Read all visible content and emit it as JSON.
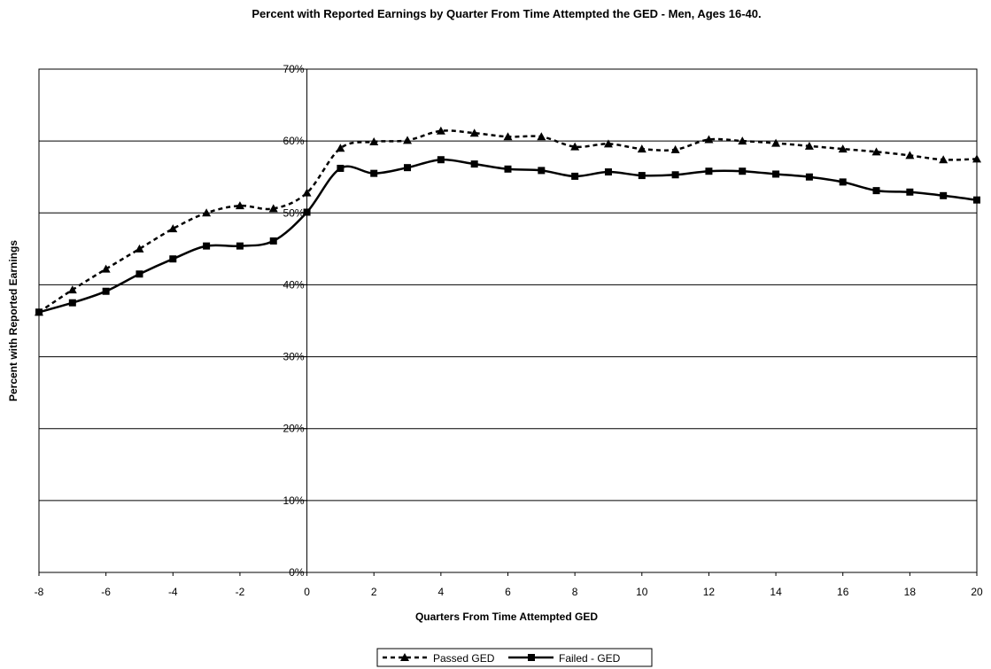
{
  "chart_data": {
    "type": "line",
    "title": "Percent with Reported Earnings by Quarter From Time Attempted the GED - Men, Ages 16-40.",
    "xlabel": "Quarters From Time Attempted GED",
    "ylabel": "Percent with Reported Earnings",
    "xlim": [
      -8,
      20
    ],
    "ylim": [
      0,
      70
    ],
    "x_ticks": [
      "-8",
      "-6",
      "-4",
      "-2",
      "0",
      "2",
      "4",
      "6",
      "8",
      "10",
      "12",
      "14",
      "16",
      "18",
      "20"
    ],
    "y_ticks": [
      "0%",
      "10%",
      "20%",
      "30%",
      "40%",
      "50%",
      "60%",
      "70%"
    ],
    "grid": "horizontal",
    "legend_position": "bottom",
    "x": [
      -8,
      -7,
      -6,
      -5,
      -4,
      -3,
      -2,
      -1,
      0,
      1,
      2,
      3,
      4,
      5,
      6,
      7,
      8,
      9,
      10,
      11,
      12,
      13,
      14,
      15,
      16,
      17,
      18,
      19,
      20
    ],
    "series": [
      {
        "name": "Passed GED",
        "style": "dashed",
        "marker": "triangle",
        "color": "#000000",
        "values": [
          36.2,
          39.3,
          42.2,
          45.0,
          47.8,
          50.0,
          51.0,
          50.6,
          52.8,
          59.0,
          59.9,
          60.1,
          61.4,
          61.1,
          60.6,
          60.6,
          59.2,
          59.6,
          58.9,
          58.8,
          60.2,
          60.0,
          59.7,
          59.3,
          58.9,
          58.5,
          58.0,
          57.4,
          57.5
        ]
      },
      {
        "name": "Failed - GED",
        "style": "solid",
        "marker": "square",
        "color": "#000000",
        "values": [
          36.2,
          37.5,
          39.1,
          41.5,
          43.6,
          45.4,
          45.4,
          46.1,
          50.1,
          56.2,
          55.5,
          56.3,
          57.4,
          56.8,
          56.1,
          55.9,
          55.1,
          55.7,
          55.2,
          55.3,
          55.8,
          55.8,
          55.4,
          55.0,
          54.3,
          53.1,
          52.9,
          52.4,
          51.8
        ]
      }
    ]
  }
}
